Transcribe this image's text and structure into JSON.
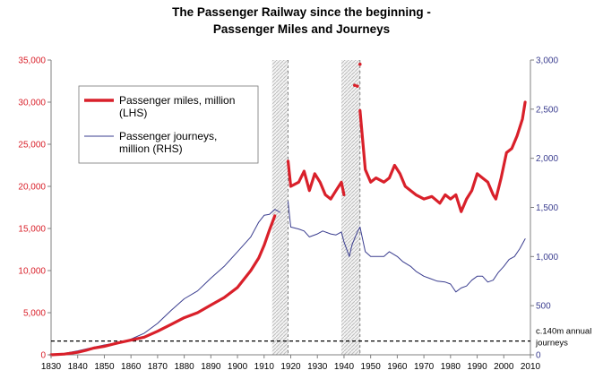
{
  "chart_data": {
    "type": "line",
    "title": "The Passenger Railway since the beginning -",
    "subtitle": "Passenger Miles and Journeys",
    "x_ticks": [
      "1830",
      "1840",
      "1850",
      "1860",
      "1870",
      "1880",
      "1890",
      "1900",
      "1910",
      "1920",
      "1930",
      "1940",
      "1950",
      "1960",
      "1970",
      "1980",
      "1990",
      "2000",
      "2010"
    ],
    "xlim": [
      1830,
      2010
    ],
    "left_axis": {
      "ylim": [
        0,
        35000
      ],
      "ticks": [
        "0",
        "5,000",
        "10,000",
        "15,000",
        "20,000",
        "25,000",
        "30,000",
        "35,000"
      ],
      "color": "#d9202a"
    },
    "right_axis": {
      "ylim": [
        0,
        3000
      ],
      "ticks": [
        "0",
        "500",
        "1,000",
        "1,500",
        "2,000",
        "2,500",
        "3,000"
      ],
      "color": "#3a3d8f"
    },
    "legend_placement": "top-left",
    "series": [
      {
        "name": "Passenger miles, million (LHS)",
        "axis": "left",
        "color": "#d9202a",
        "segments": [
          [
            [
              1830,
              0
            ],
            [
              1835,
              80
            ],
            [
              1840,
              300
            ],
            [
              1843,
              520
            ],
            [
              1846,
              800
            ],
            [
              1850,
              1000
            ],
            [
              1855,
              1400
            ],
            [
              1860,
              1750
            ],
            [
              1865,
              2100
            ],
            [
              1870,
              2800
            ],
            [
              1875,
              3600
            ],
            [
              1880,
              4400
            ],
            [
              1885,
              5000
            ],
            [
              1890,
              5900
            ],
            [
              1895,
              6800
            ],
            [
              1900,
              8000
            ],
            [
              1905,
              10000
            ],
            [
              1908,
              11500
            ],
            [
              1910,
              13000
            ],
            [
              1912,
              14800
            ],
            [
              1914,
              16500
            ]
          ],
          [
            [
              1919,
              23000
            ],
            [
              1920,
              20000
            ],
            [
              1923,
              20500
            ],
            [
              1925,
              21800
            ],
            [
              1927,
              19500
            ],
            [
              1929,
              21500
            ],
            [
              1931,
              20500
            ],
            [
              1933,
              19000
            ],
            [
              1935,
              18500
            ],
            [
              1937,
              19500
            ],
            [
              1939,
              20500
            ],
            [
              1940,
              19000
            ]
          ],
          [
            [
              1946,
              29000
            ],
            [
              1948,
              22000
            ],
            [
              1950,
              20500
            ],
            [
              1952,
              21000
            ],
            [
              1955,
              20500
            ],
            [
              1957,
              21000
            ],
            [
              1959,
              22500
            ],
            [
              1961,
              21500
            ],
            [
              1963,
              20000
            ],
            [
              1965,
              19500
            ],
            [
              1967,
              19000
            ],
            [
              1970,
              18500
            ],
            [
              1973,
              18800
            ],
            [
              1976,
              18000
            ],
            [
              1978,
              19000
            ],
            [
              1980,
              18500
            ],
            [
              1982,
              19000
            ],
            [
              1984,
              17000
            ],
            [
              1986,
              18500
            ],
            [
              1988,
              19500
            ],
            [
              1990,
              21500
            ],
            [
              1992,
              21000
            ],
            [
              1994,
              20500
            ],
            [
              1996,
              19000
            ],
            [
              1997,
              18500
            ],
            [
              1999,
              21000
            ],
            [
              2001,
              24000
            ],
            [
              2003,
              24500
            ],
            [
              2005,
              26000
            ],
            [
              2007,
              28000
            ],
            [
              2008,
              30000
            ]
          ]
        ],
        "dots": [
          [
            1944,
            32000
          ],
          [
            1945,
            31900
          ],
          [
            1946,
            34500
          ]
        ]
      },
      {
        "name": "Passenger journeys, million (RHS)",
        "axis": "right",
        "color": "#3a3d8f",
        "segments": [
          [
            [
              1830,
              0
            ],
            [
              1835,
              15
            ],
            [
              1840,
              40
            ],
            [
              1845,
              70
            ],
            [
              1850,
              100
            ],
            [
              1855,
              120
            ],
            [
              1860,
              160
            ],
            [
              1865,
              220
            ],
            [
              1870,
              320
            ],
            [
              1875,
              450
            ],
            [
              1880,
              570
            ],
            [
              1885,
              650
            ],
            [
              1890,
              780
            ],
            [
              1895,
              900
            ],
            [
              1900,
              1050
            ],
            [
              1905,
              1200
            ],
            [
              1908,
              1350
            ],
            [
              1910,
              1420
            ],
            [
              1912,
              1430
            ],
            [
              1914,
              1480
            ],
            [
              1916,
              1450
            ]
          ],
          [
            [
              1919,
              1560
            ],
            [
              1920,
              1300
            ],
            [
              1923,
              1280
            ],
            [
              1925,
              1260
            ],
            [
              1927,
              1200
            ],
            [
              1930,
              1230
            ],
            [
              1932,
              1260
            ],
            [
              1935,
              1230
            ],
            [
              1937,
              1220
            ],
            [
              1939,
              1250
            ],
            [
              1940,
              1150
            ],
            [
              1942,
              1000
            ],
            [
              1943,
              1120
            ],
            [
              1945,
              1250
            ],
            [
              1946,
              1300
            ],
            [
              1948,
              1050
            ],
            [
              1950,
              1000
            ],
            [
              1953,
              1000
            ],
            [
              1955,
              1000
            ],
            [
              1957,
              1050
            ],
            [
              1960,
              1000
            ],
            [
              1962,
              950
            ],
            [
              1965,
              900
            ],
            [
              1967,
              850
            ],
            [
              1970,
              800
            ],
            [
              1972,
              780
            ],
            [
              1975,
              750
            ],
            [
              1978,
              740
            ],
            [
              1980,
              720
            ],
            [
              1982,
              640
            ],
            [
              1984,
              680
            ],
            [
              1986,
              700
            ],
            [
              1988,
              760
            ],
            [
              1990,
              800
            ],
            [
              1992,
              800
            ],
            [
              1994,
              740
            ],
            [
              1996,
              760
            ],
            [
              1998,
              840
            ],
            [
              2000,
              900
            ],
            [
              2002,
              970
            ],
            [
              2004,
              1000
            ],
            [
              2006,
              1080
            ],
            [
              2008,
              1180
            ]
          ]
        ]
      }
    ],
    "wartime_bands": [
      [
        1913,
        1919
      ],
      [
        1939,
        1946
      ]
    ],
    "reference_line": {
      "right_value": 140,
      "label": "c.140m annual journeys"
    }
  }
}
